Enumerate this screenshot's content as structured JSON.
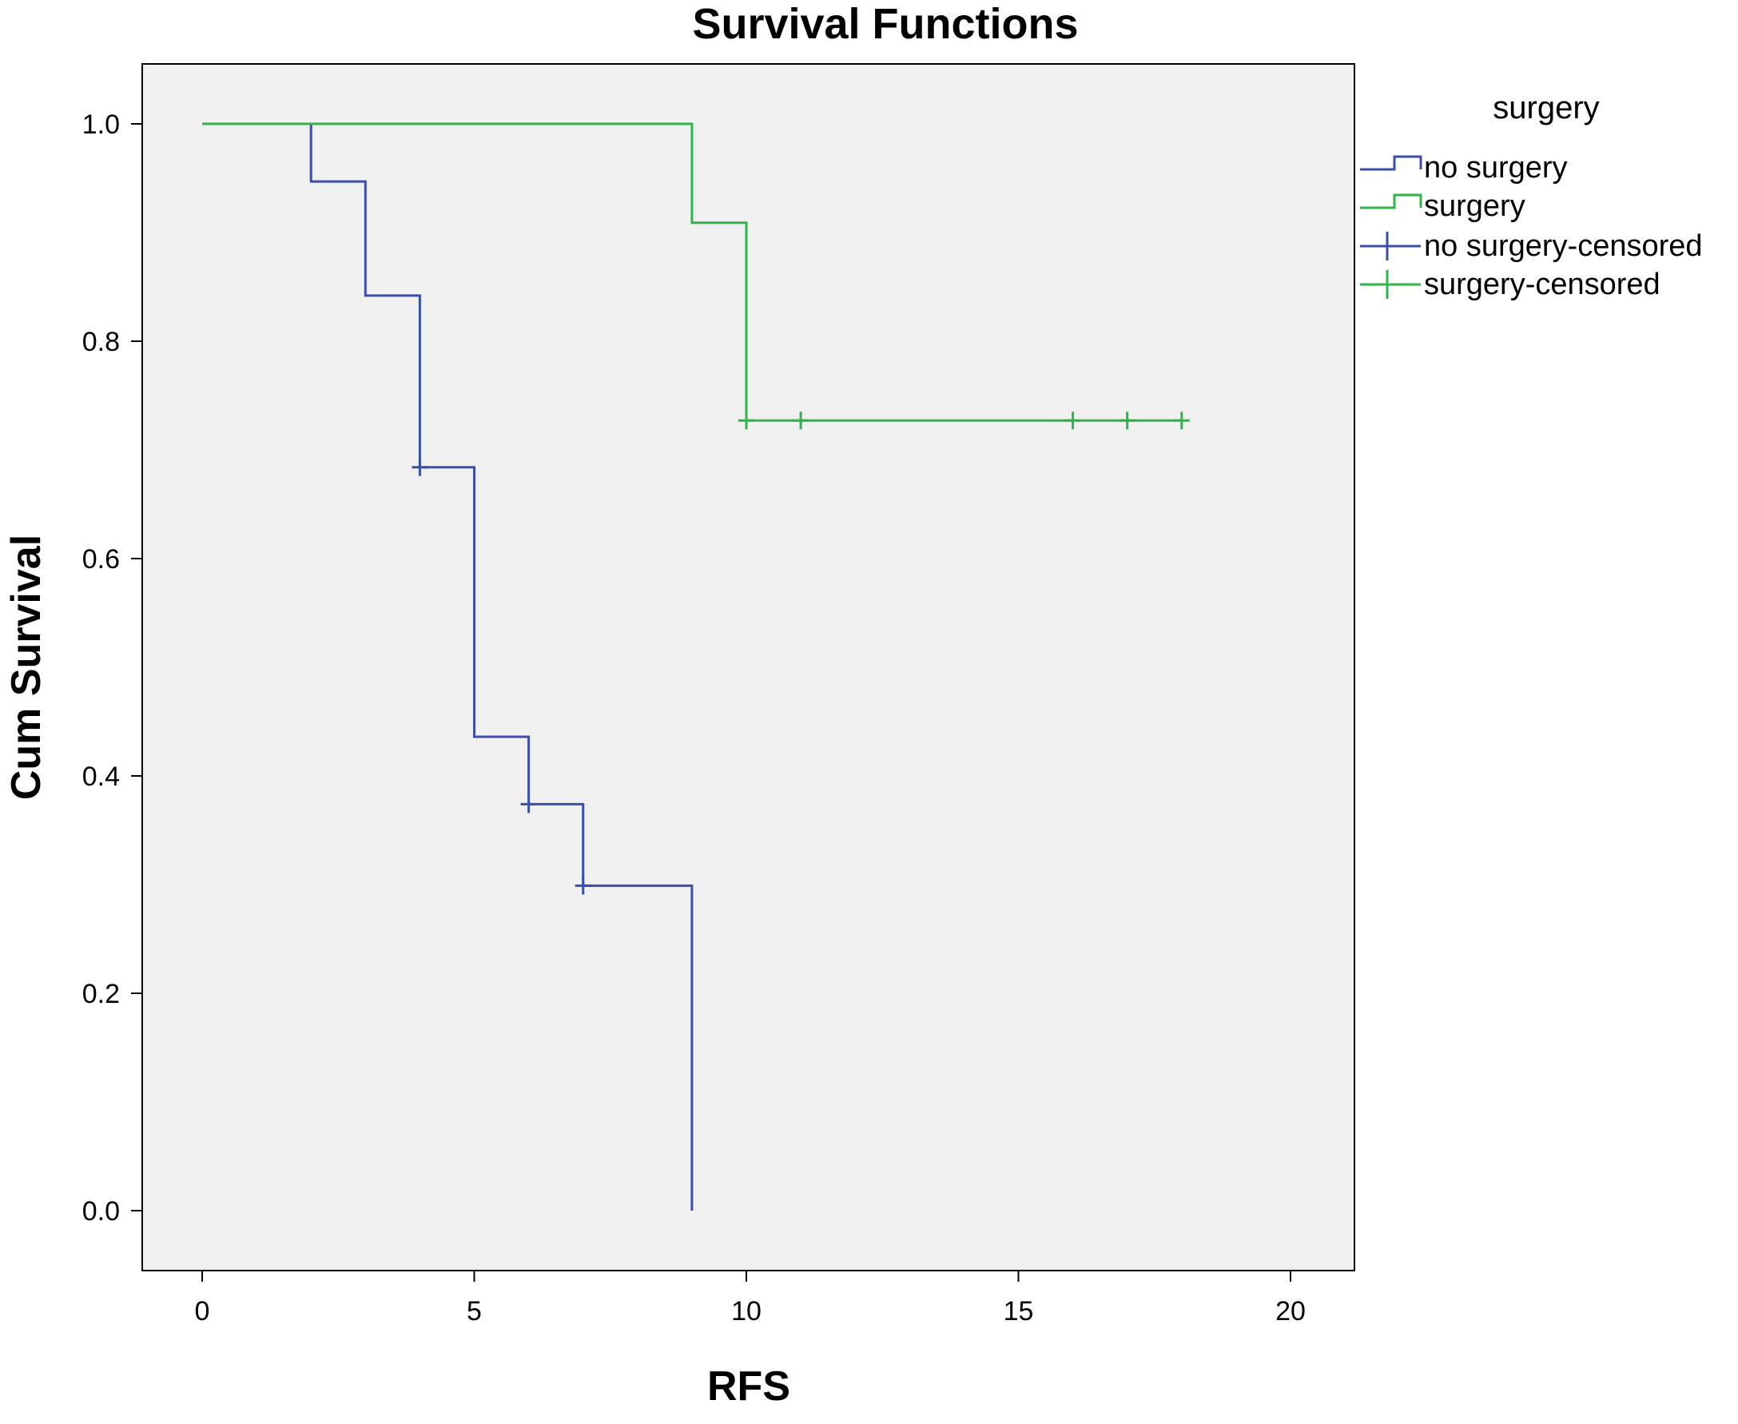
{
  "chart_data": {
    "type": "line",
    "title": "Survival Functions",
    "xlabel": "RFS",
    "ylabel": "Cum Survival",
    "xlim": [
      0,
      20
    ],
    "ylim": [
      0.0,
      1.0
    ],
    "x_ticks": [
      "0",
      "5",
      "10",
      "15",
      "20"
    ],
    "y_ticks": [
      "0.0",
      "0.2",
      "0.4",
      "0.6",
      "0.8",
      "1.0"
    ],
    "x_tick_values": [
      0,
      5,
      10,
      15,
      20
    ],
    "y_tick_values": [
      0.0,
      0.2,
      0.4,
      0.6,
      0.8,
      1.0
    ],
    "grid": false,
    "legend_position": "right",
    "legend": {
      "title": "surgery",
      "entries": [
        "no surgery",
        "surgery",
        "no surgery-censored",
        "surgery-censored"
      ]
    },
    "colors": {
      "no_surgery": "#3b4fa8",
      "surgery": "#2fb34a",
      "plot_background": "#f0f0f0"
    },
    "series": [
      {
        "name": "no surgery",
        "step_x": [
          0,
          2,
          3,
          4,
          5,
          6,
          7,
          9
        ],
        "step_y": [
          1.0,
          0.947,
          0.842,
          0.684,
          0.436,
          0.374,
          0.299,
          0.0
        ],
        "censored_x": [
          4,
          6,
          7
        ],
        "censored_y": [
          0.684,
          0.374,
          0.299
        ]
      },
      {
        "name": "surgery",
        "step_x": [
          0,
          9,
          10,
          18
        ],
        "step_y": [
          1.0,
          0.909,
          0.727,
          0.727
        ],
        "censored_x": [
          10,
          11,
          16,
          17,
          18
        ],
        "censored_y": [
          0.727,
          0.727,
          0.727,
          0.727,
          0.727
        ]
      }
    ]
  }
}
